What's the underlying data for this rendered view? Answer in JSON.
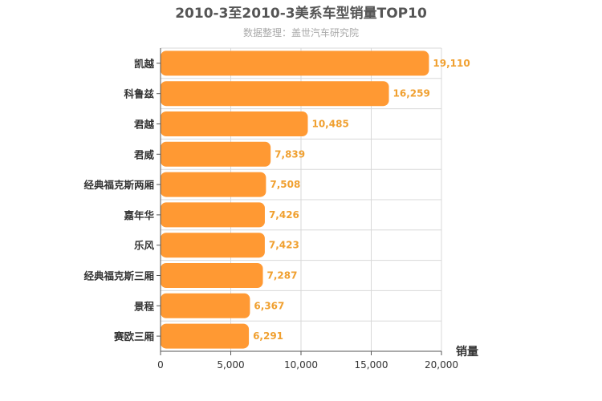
{
  "chart_data": {
    "type": "bar",
    "orientation": "horizontal",
    "title": "2010-3至2010-3美系车型销量TOP10",
    "subtitle": "数据整理：盖世汽车研究院",
    "categories": [
      "凯越",
      "科鲁兹",
      "君越",
      "君威",
      "经典福克斯两厢",
      "嘉年华",
      "乐风",
      "经典福克斯三厢",
      "景程",
      "赛欧三厢"
    ],
    "values": [
      19110,
      16259,
      10485,
      7839,
      7508,
      7426,
      7423,
      7287,
      6367,
      6291
    ],
    "value_labels": [
      "19,110",
      "16,259",
      "10,485",
      "7,839",
      "7,508",
      "7,426",
      "7,423",
      "7,287",
      "6,367",
      "6,291"
    ],
    "xlabel": "销量",
    "xlim": [
      0,
      20000
    ],
    "x_ticks": [
      0,
      5000,
      10000,
      15000,
      20000
    ],
    "x_tick_labels": [
      "0",
      "5,000",
      "10,000",
      "15,000",
      "20,000"
    ],
    "grid": true,
    "bar_color": "#ff9933",
    "label_color": "#f0a030"
  }
}
